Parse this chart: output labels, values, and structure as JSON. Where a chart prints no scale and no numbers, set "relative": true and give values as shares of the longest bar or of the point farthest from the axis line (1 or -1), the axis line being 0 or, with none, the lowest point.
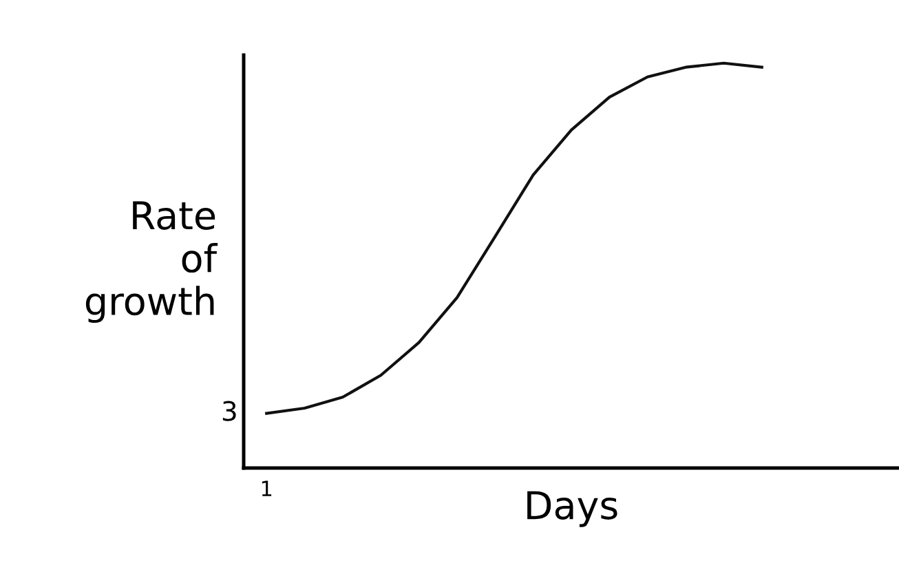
{
  "chart_data": {
    "type": "line",
    "relative": true,
    "xlabel": "Days",
    "ylabel": "Rate\nof\ngrowth",
    "categories": [
      null,
      null,
      null,
      null,
      null,
      null,
      null,
      null,
      null,
      null,
      null,
      null,
      null,
      null
    ],
    "values": [
      0.135,
      0.148,
      0.175,
      0.229,
      0.31,
      0.421,
      0.572,
      0.724,
      0.835,
      0.916,
      0.966,
      0.99,
      1.0,
      0.99
    ],
    "color": "#111111",
    "marker": "none",
    "line_style": "solid",
    "grid": false,
    "legend": false,
    "annotations": [
      "3",
      "1"
    ]
  }
}
